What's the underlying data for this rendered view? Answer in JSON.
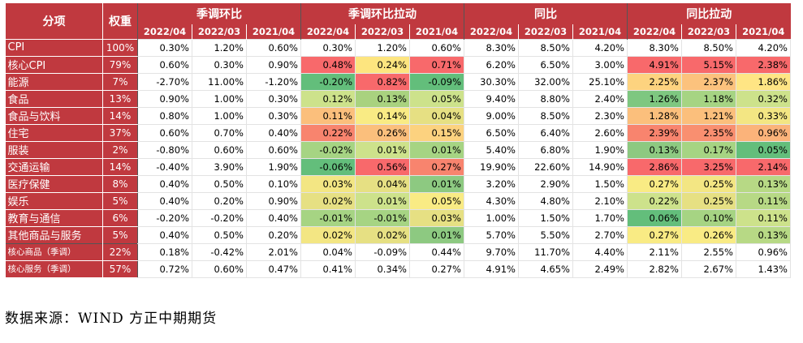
{
  "table": {
    "corner_label": "分项",
    "weight_label": "权重",
    "groups": [
      "季调环比",
      "季调环比拉动",
      "同比",
      "同比拉动"
    ],
    "periods": [
      "2022/04",
      "2022/03",
      "2021/04"
    ],
    "rows": [
      {
        "label": "CPI",
        "indent": false,
        "small": false,
        "weight": "100%",
        "values": [
          "0.30%",
          "1.20%",
          "0.60%",
          "0.30%",
          "1.20%",
          "0.60%",
          "8.30%",
          "8.50%",
          "4.20%",
          "8.30%",
          "8.50%",
          "4.20%"
        ],
        "colors": [
          null,
          null,
          null,
          null,
          null,
          null,
          null,
          null,
          null,
          null,
          null,
          null
        ]
      },
      {
        "label": "核心CPI",
        "indent": true,
        "small": false,
        "weight": "79%",
        "values": [
          "0.60%",
          "0.30%",
          "0.90%",
          "0.48%",
          "0.24%",
          "0.71%",
          "6.20%",
          "6.50%",
          "3.00%",
          "4.91%",
          "5.15%",
          "2.38%"
        ],
        "colors": [
          null,
          null,
          null,
          "#f8696b",
          "#fde57f",
          "#f8696b",
          null,
          null,
          null,
          "#f8696b",
          "#f8696b",
          "#f8696b"
        ]
      },
      {
        "label": "能源",
        "indent": true,
        "small": false,
        "weight": "7%",
        "values": [
          "-2.70%",
          "11.00%",
          "-1.20%",
          "-0.20%",
          "0.82%",
          "-0.09%",
          "30.30%",
          "32.00%",
          "25.10%",
          "2.25%",
          "2.37%",
          "1.86%"
        ],
        "colors": [
          null,
          null,
          null,
          "#63be7b",
          "#f8696b",
          "#63be7b",
          null,
          null,
          null,
          "#fdd37f",
          "#fcc27d",
          "#ffe584"
        ]
      },
      {
        "label": "食品",
        "indent": true,
        "small": false,
        "weight": "13%",
        "values": [
          "0.90%",
          "1.00%",
          "0.30%",
          "0.12%",
          "0.13%",
          "0.05%",
          "9.40%",
          "8.80%",
          "2.40%",
          "1.26%",
          "1.18%",
          "0.32%"
        ],
        "colors": [
          null,
          null,
          null,
          "#cde28b",
          "#a9d27f",
          "#cde28b",
          null,
          null,
          null,
          "#7ec780",
          "#a6d483",
          "#cde28b"
        ]
      },
      {
        "label": "食品与饮料",
        "indent": false,
        "small": false,
        "weight": "14%",
        "values": [
          "0.80%",
          "1.00%",
          "0.30%",
          "0.11%",
          "0.14%",
          "0.04%",
          "9.00%",
          "8.50%",
          "2.30%",
          "1.28%",
          "1.21%",
          "0.33%"
        ],
        "colors": [
          null,
          null,
          null,
          "#fbbf7c",
          "#f9eb84",
          "#e6e083",
          null,
          null,
          null,
          "#fbbf7c",
          "#fbbf7c",
          "#f3e683"
        ]
      },
      {
        "label": "住宅",
        "indent": false,
        "small": false,
        "weight": "37%",
        "values": [
          "0.60%",
          "0.70%",
          "0.40%",
          "0.22%",
          "0.26%",
          "0.15%",
          "6.50%",
          "6.40%",
          "2.60%",
          "2.39%",
          "2.35%",
          "0.96%"
        ],
        "colors": [
          null,
          null,
          null,
          "#f8846e",
          "#fbbf7c",
          "#fcd27f",
          null,
          null,
          null,
          "#f8846e",
          "#f98f70",
          "#fbb37a"
        ]
      },
      {
        "label": "服装",
        "indent": false,
        "small": false,
        "weight": "2%",
        "values": [
          "-0.80%",
          "0.60%",
          "0.60%",
          "-0.02%",
          "0.01%",
          "0.01%",
          "5.40%",
          "6.80%",
          "1.90%",
          "0.13%",
          "0.17%",
          "0.05%"
        ],
        "colors": [
          null,
          null,
          null,
          "#a6d483",
          "#cde28b",
          "#a6d483",
          null,
          null,
          null,
          "#8dc981",
          "#a6d483",
          "#63be7b"
        ]
      },
      {
        "label": "交通运输",
        "indent": false,
        "small": false,
        "weight": "14%",
        "values": [
          "-0.40%",
          "3.90%",
          "1.90%",
          "-0.06%",
          "0.56%",
          "0.27%",
          "19.90%",
          "22.60%",
          "14.90%",
          "2.86%",
          "3.25%",
          "2.14%"
        ],
        "colors": [
          null,
          null,
          null,
          "#63be7b",
          "#f8696b",
          "#f8846e",
          null,
          null,
          null,
          "#f8696b",
          "#f8696b",
          "#f8696b"
        ]
      },
      {
        "label": "医疗保健",
        "indent": false,
        "small": false,
        "weight": "8%",
        "values": [
          "0.40%",
          "0.50%",
          "0.10%",
          "0.03%",
          "0.04%",
          "0.01%",
          "3.20%",
          "2.90%",
          "1.50%",
          "0.27%",
          "0.25%",
          "0.13%"
        ],
        "colors": [
          null,
          null,
          null,
          "#f3e683",
          "#e6e083",
          "#8dc981",
          null,
          null,
          null,
          "#f9eb84",
          "#f3e683",
          "#b7d985"
        ]
      },
      {
        "label": "娱乐",
        "indent": false,
        "small": false,
        "weight": "5%",
        "values": [
          "0.40%",
          "0.20%",
          "0.90%",
          "0.02%",
          "0.01%",
          "0.05%",
          "4.30%",
          "4.80%",
          "2.10%",
          "0.22%",
          "0.25%",
          "0.11%"
        ],
        "colors": [
          null,
          null,
          null,
          "#e6e083",
          "#cde28b",
          "#f9eb84",
          null,
          null,
          null,
          "#cde28b",
          "#e6e083",
          "#b7d985"
        ]
      },
      {
        "label": "教育与通信",
        "indent": false,
        "small": false,
        "weight": "6%",
        "values": [
          "-0.20%",
          "-0.20%",
          "0.40%",
          "-0.01%",
          "-0.01%",
          "0.03%",
          "1.00%",
          "1.50%",
          "1.70%",
          "0.06%",
          "0.10%",
          "0.11%"
        ],
        "colors": [
          null,
          null,
          null,
          "#a6d483",
          "#a6d483",
          "#e6e083",
          null,
          null,
          null,
          "#63be7b",
          "#a6d483",
          "#cde28b"
        ]
      },
      {
        "label": "其他商品与服务",
        "indent": false,
        "small": false,
        "weight": "5%",
        "values": [
          "0.40%",
          "0.50%",
          "0.20%",
          "0.02%",
          "0.02%",
          "0.01%",
          "5.70%",
          "5.50%",
          "2.70%",
          "0.27%",
          "0.26%",
          "0.13%"
        ],
        "colors": [
          null,
          null,
          null,
          "#f3e683",
          "#e6e083",
          "#8dc981",
          null,
          null,
          null,
          "#f9eb84",
          "#f9eb84",
          "#b7d985"
        ]
      },
      {
        "label": "核心商品（季调）",
        "indent": false,
        "small": true,
        "weight": "22%",
        "values": [
          "0.18%",
          "-0.42%",
          "2.01%",
          "0.04%",
          "-0.09%",
          "0.44%",
          "9.70%",
          "11.70%",
          "4.40%",
          "2.11%",
          "2.55%",
          "0.96%"
        ],
        "colors": [
          null,
          null,
          null,
          null,
          null,
          null,
          null,
          null,
          null,
          null,
          null,
          null
        ]
      },
      {
        "label": "核心服务（季调）",
        "indent": false,
        "small": true,
        "weight": "57%",
        "values": [
          "0.72%",
          "0.60%",
          "0.47%",
          "0.41%",
          "0.34%",
          "0.27%",
          "4.91%",
          "4.65%",
          "2.49%",
          "2.82%",
          "2.67%",
          "1.43%"
        ],
        "colors": [
          null,
          null,
          null,
          null,
          null,
          null,
          null,
          null,
          null,
          null,
          null,
          null
        ]
      }
    ]
  },
  "source_note": "数据来源：WIND 方正中期期货"
}
